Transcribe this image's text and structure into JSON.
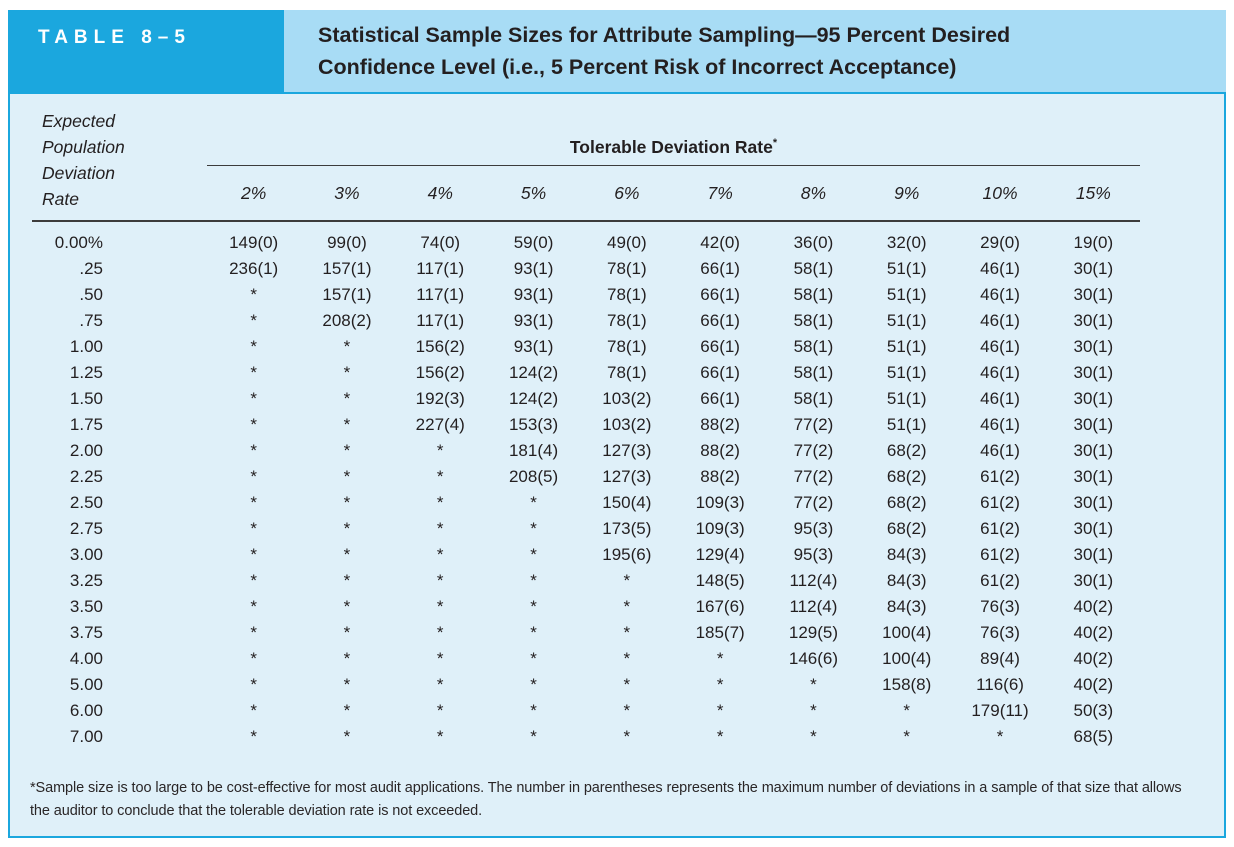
{
  "header": {
    "table_label": "TABLE 8–5",
    "title_line1": "Statistical Sample Sizes for Attribute Sampling—95 Percent Desired",
    "title_line2": "Confidence Level (i.e., 5 Percent Risk of Incorrect Acceptance)"
  },
  "table": {
    "corner_label": "Expected Population Deviation Rate",
    "group_header": "Tolerable Deviation Rate",
    "group_header_note": "*",
    "columns": [
      "2%",
      "3%",
      "4%",
      "5%",
      "6%",
      "7%",
      "8%",
      "9%",
      "10%",
      "15%"
    ],
    "rows": [
      {
        "label": "0.00%",
        "values": [
          "149(0)",
          "99(0)",
          "74(0)",
          "59(0)",
          "49(0)",
          "42(0)",
          "36(0)",
          "32(0)",
          "29(0)",
          "19(0)"
        ]
      },
      {
        "label": ".25",
        "values": [
          "236(1)",
          "157(1)",
          "117(1)",
          "93(1)",
          "78(1)",
          "66(1)",
          "58(1)",
          "51(1)",
          "46(1)",
          "30(1)"
        ]
      },
      {
        "label": ".50",
        "values": [
          "*",
          "157(1)",
          "117(1)",
          "93(1)",
          "78(1)",
          "66(1)",
          "58(1)",
          "51(1)",
          "46(1)",
          "30(1)"
        ]
      },
      {
        "label": ".75",
        "values": [
          "*",
          "208(2)",
          "117(1)",
          "93(1)",
          "78(1)",
          "66(1)",
          "58(1)",
          "51(1)",
          "46(1)",
          "30(1)"
        ]
      },
      {
        "label": "1.00",
        "values": [
          "*",
          "*",
          "156(2)",
          "93(1)",
          "78(1)",
          "66(1)",
          "58(1)",
          "51(1)",
          "46(1)",
          "30(1)"
        ]
      },
      {
        "label": "1.25",
        "values": [
          "*",
          "*",
          "156(2)",
          "124(2)",
          "78(1)",
          "66(1)",
          "58(1)",
          "51(1)",
          "46(1)",
          "30(1)"
        ]
      },
      {
        "label": "1.50",
        "values": [
          "*",
          "*",
          "192(3)",
          "124(2)",
          "103(2)",
          "66(1)",
          "58(1)",
          "51(1)",
          "46(1)",
          "30(1)"
        ]
      },
      {
        "label": "1.75",
        "values": [
          "*",
          "*",
          "227(4)",
          "153(3)",
          "103(2)",
          "88(2)",
          "77(2)",
          "51(1)",
          "46(1)",
          "30(1)"
        ]
      },
      {
        "label": "2.00",
        "values": [
          "*",
          "*",
          "*",
          "181(4)",
          "127(3)",
          "88(2)",
          "77(2)",
          "68(2)",
          "46(1)",
          "30(1)"
        ]
      },
      {
        "label": "2.25",
        "values": [
          "*",
          "*",
          "*",
          "208(5)",
          "127(3)",
          "88(2)",
          "77(2)",
          "68(2)",
          "61(2)",
          "30(1)"
        ]
      },
      {
        "label": "2.50",
        "values": [
          "*",
          "*",
          "*",
          "*",
          "150(4)",
          "109(3)",
          "77(2)",
          "68(2)",
          "61(2)",
          "30(1)"
        ]
      },
      {
        "label": "2.75",
        "values": [
          "*",
          "*",
          "*",
          "*",
          "173(5)",
          "109(3)",
          "95(3)",
          "68(2)",
          "61(2)",
          "30(1)"
        ]
      },
      {
        "label": "3.00",
        "values": [
          "*",
          "*",
          "*",
          "*",
          "195(6)",
          "129(4)",
          "95(3)",
          "84(3)",
          "61(2)",
          "30(1)"
        ]
      },
      {
        "label": "3.25",
        "values": [
          "*",
          "*",
          "*",
          "*",
          "*",
          "148(5)",
          "112(4)",
          "84(3)",
          "61(2)",
          "30(1)"
        ]
      },
      {
        "label": "3.50",
        "values": [
          "*",
          "*",
          "*",
          "*",
          "*",
          "167(6)",
          "112(4)",
          "84(3)",
          "76(3)",
          "40(2)"
        ]
      },
      {
        "label": "3.75",
        "values": [
          "*",
          "*",
          "*",
          "*",
          "*",
          "185(7)",
          "129(5)",
          "100(4)",
          "76(3)",
          "40(2)"
        ]
      },
      {
        "label": "4.00",
        "values": [
          "*",
          "*",
          "*",
          "*",
          "*",
          "*",
          "146(6)",
          "100(4)",
          "89(4)",
          "40(2)"
        ]
      },
      {
        "label": "5.00",
        "values": [
          "*",
          "*",
          "*",
          "*",
          "*",
          "*",
          "*",
          "158(8)",
          "116(6)",
          "40(2)"
        ]
      },
      {
        "label": "6.00",
        "values": [
          "*",
          "*",
          "*",
          "*",
          "*",
          "*",
          "*",
          "*",
          "179(11)",
          "50(3)"
        ]
      },
      {
        "label": "7.00",
        "values": [
          "*",
          "*",
          "*",
          "*",
          "*",
          "*",
          "*",
          "*",
          "*",
          "68(5)"
        ]
      }
    ]
  },
  "footnote": {
    "text": "*Sample size is too large to be cost-effective for most audit applications. The number in parentheses represents the maximum number of deviations in a sample of that size that allows the auditor to conclude that the tolerable deviation rate is not exceeded."
  },
  "colors": {
    "accent_blue": "#1ba7de",
    "title_band_blue": "#a8dcf5",
    "panel_blue": "#dff0f9",
    "text_dark": "#231f20"
  }
}
